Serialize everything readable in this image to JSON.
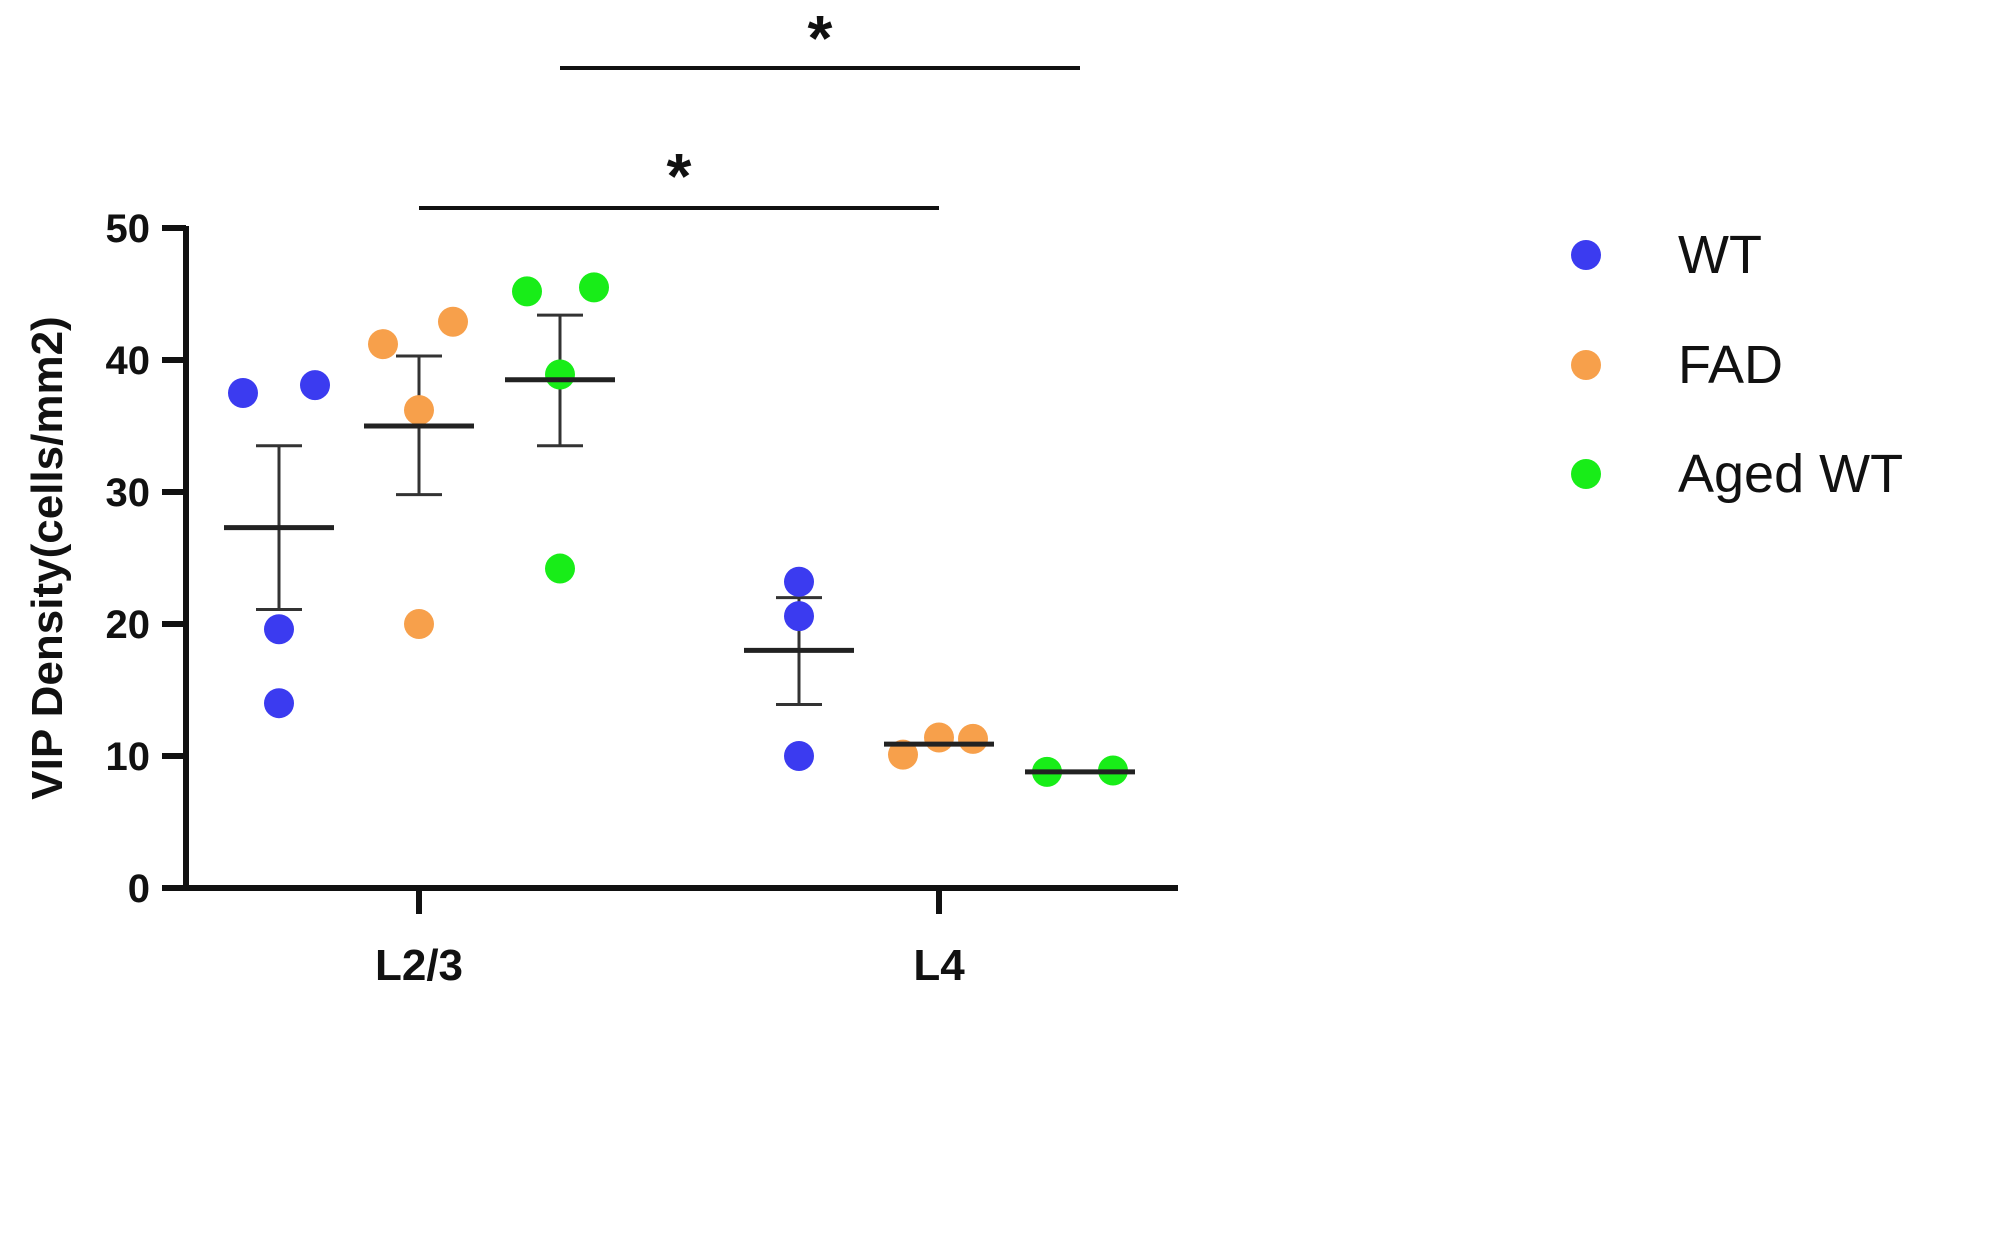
{
  "chart_data": {
    "type": "scatter",
    "ylabel": "VIP Density(cells/mm2)",
    "xlabel": "",
    "ylim": [
      0,
      50
    ],
    "yticks": [
      0,
      10,
      20,
      30,
      40,
      50
    ],
    "categories": [
      "L2/3",
      "L4"
    ],
    "legend_position": "right",
    "series": [
      {
        "name": "WT",
        "color": "#3b3bf0",
        "groups": [
          {
            "category": "L2/3",
            "points": [
              37.5,
              38.1,
              19.6,
              14.0
            ],
            "mean": 27.3,
            "sem_low": 21.1,
            "sem_high": 33.5
          },
          {
            "category": "L4",
            "points": [
              23.2,
              20.6,
              10.0
            ],
            "mean": 18.0,
            "sem_low": 13.9,
            "sem_high": 22.0
          }
        ]
      },
      {
        "name": "FAD",
        "color": "#f7a04b",
        "groups": [
          {
            "category": "L2/3",
            "points": [
              41.2,
              42.9,
              36.2,
              20.0
            ],
            "mean": 35.0,
            "sem_low": 29.8,
            "sem_high": 40.3
          },
          {
            "category": "L4",
            "points": [
              10.1,
              11.4,
              11.3
            ],
            "mean": 10.9
          }
        ]
      },
      {
        "name": "Aged WT",
        "color": "#18ed18",
        "groups": [
          {
            "category": "L2/3",
            "points": [
              45.2,
              45.5,
              38.9,
              24.2
            ],
            "mean": 38.5,
            "sem_low": 33.5,
            "sem_high": 43.4
          },
          {
            "category": "L4",
            "points": [
              8.8,
              8.9
            ],
            "mean": 8.8
          }
        ]
      }
    ],
    "annotations": [
      {
        "label": "*",
        "from_series": "FAD",
        "from_category": "L2/3",
        "to_series": "FAD",
        "to_category": "L4"
      },
      {
        "label": "*",
        "from_series": "Aged WT",
        "from_category": "L2/3",
        "to_series": "Aged WT",
        "to_category": "L4"
      }
    ]
  }
}
